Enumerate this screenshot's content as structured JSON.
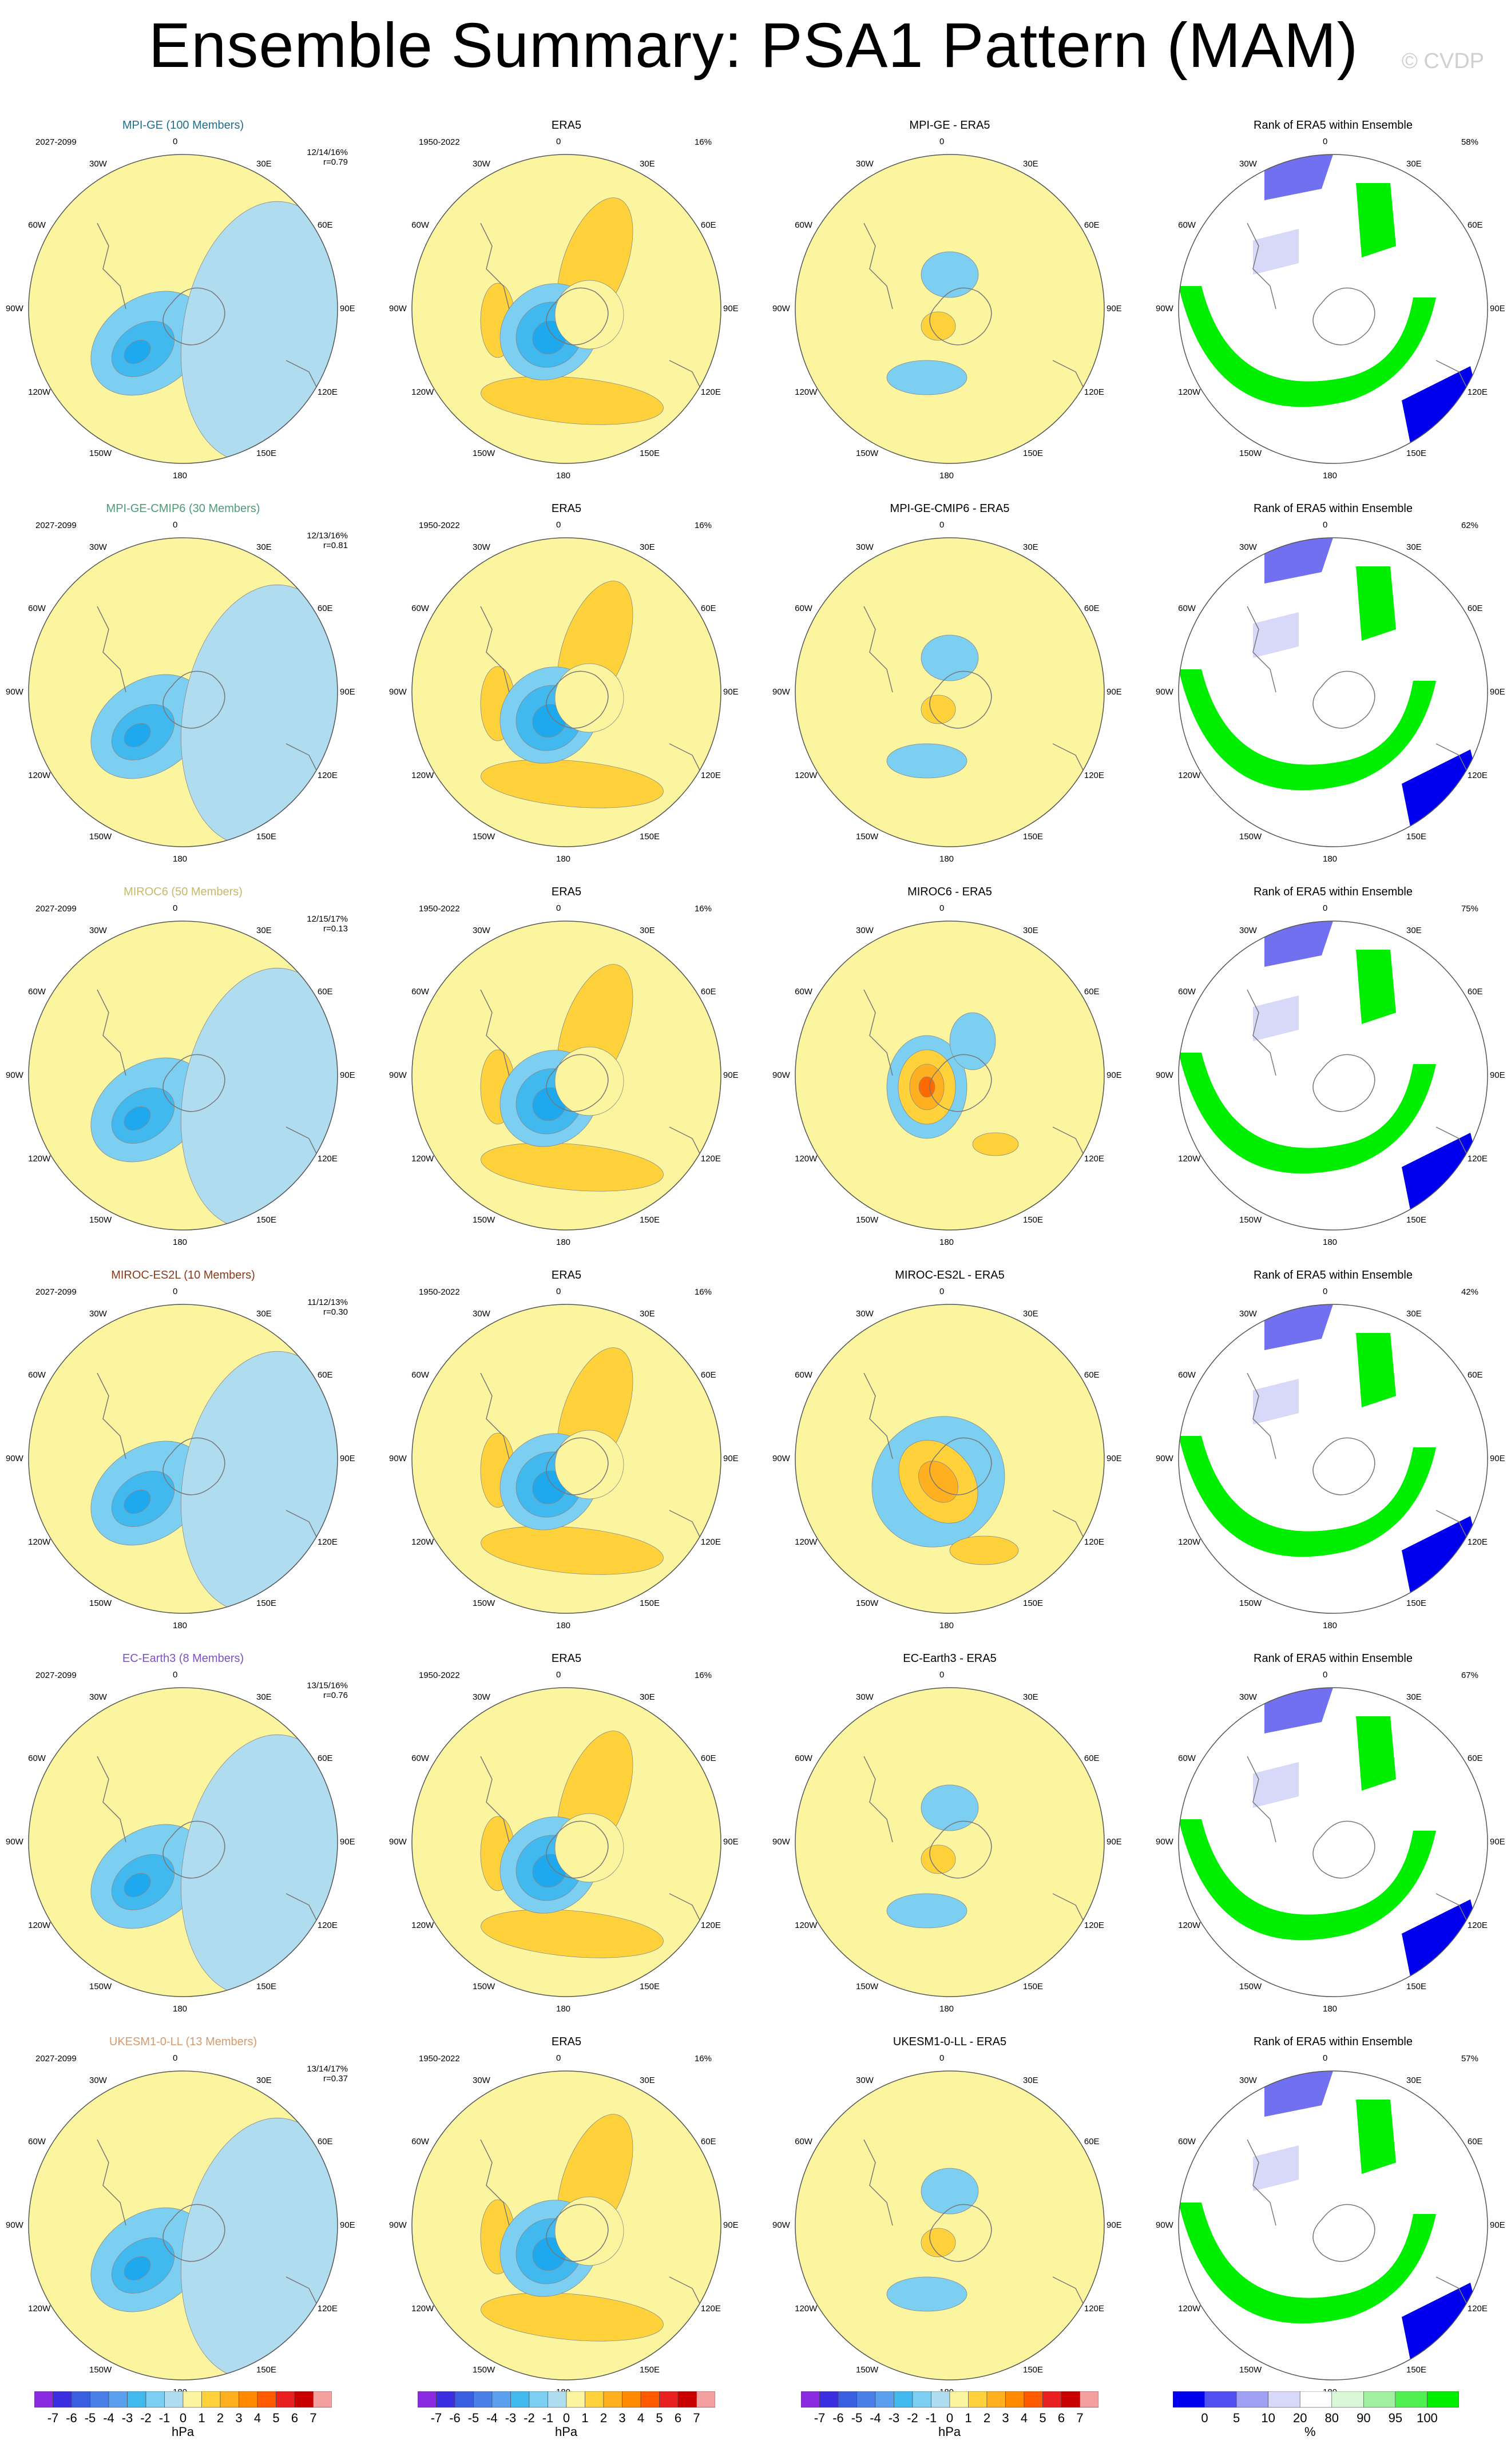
{
  "title": "Ensemble Summary: PSA1 Pattern (MAM)",
  "watermark": "© CVDP",
  "lon_labels": [
    "0",
    "30E",
    "60E",
    "90E",
    "120E",
    "150E",
    "180",
    "150W",
    "120W",
    "90W",
    "60W",
    "30W"
  ],
  "rows": [
    {
      "model": "MPI-GE (100 Members)",
      "model_color": "#1f6f8b",
      "period": "2027-2099",
      "stats": "12/14/16%",
      "r": "r=0.79",
      "diff_title": "MPI-GE - ERA5",
      "rank_pct": "58%"
    },
    {
      "model": "MPI-GE-CMIP6 (30 Members)",
      "model_color": "#4f9a7a",
      "period": "2027-2099",
      "stats": "12/13/16%",
      "r": "r=0.81",
      "diff_title": "MPI-GE-CMIP6 - ERA5",
      "rank_pct": "62%"
    },
    {
      "model": "MIROC6 (50 Members)",
      "model_color": "#c8b86a",
      "period": "2027-2099",
      "stats": "12/15/17%",
      "r": "r=0.13",
      "diff_title": "MIROC6 - ERA5",
      "rank_pct": "75%"
    },
    {
      "model": "MIROC-ES2L (10 Members)",
      "model_color": "#8b3a1a",
      "period": "2027-2099",
      "stats": "11/12/13%",
      "r": "r=0.30",
      "diff_title": "MIROC-ES2L - ERA5",
      "rank_pct": "42%"
    },
    {
      "model": "EC-Earth3 (8 Members)",
      "model_color": "#7a4fc8",
      "period": "2027-2099",
      "stats": "13/15/16%",
      "r": "r=0.76",
      "diff_title": "EC-Earth3 - ERA5",
      "rank_pct": "67%"
    },
    {
      "model": "UKESM1-0-LL (13 Members)",
      "model_color": "#d89a6a",
      "period": "2027-2099",
      "stats": "13/14/17%",
      "r": "r=0.37",
      "diff_title": "UKESM1-0-LL - ERA5",
      "rank_pct": "57%"
    }
  ],
  "era5": {
    "title": "ERA5",
    "period": "1950-2022",
    "pct": "16%"
  },
  "rank_title": "Rank of ERA5 within Ensemble",
  "colorbar_hpa": {
    "labels": [
      "-7",
      "-6",
      "-5",
      "-4",
      "-3",
      "-2",
      "-1",
      "0",
      "1",
      "2",
      "3",
      "4",
      "5",
      "6",
      "7"
    ],
    "colors": [
      "#8a2be2",
      "#3a2ee0",
      "#3a5ee0",
      "#4a7fe8",
      "#5aa0ee",
      "#41b8ee",
      "#7ccff0",
      "#b0dcf0",
      "#fbf5a0",
      "#ffd23c",
      "#ffb020",
      "#ff8a00",
      "#ff5a00",
      "#e82020",
      "#c80000",
      "#f4a0a0"
    ],
    "unit": "hPa"
  },
  "colorbar_pct": {
    "labels": [
      "0",
      "5",
      "10",
      "20",
      "80",
      "90",
      "95",
      "100"
    ],
    "colors": [
      "#0000ee",
      "#5050f0",
      "#a0a0f4",
      "#d8d8f8",
      "#ffffff",
      "#d8f8d8",
      "#a0f0a0",
      "#50f050",
      "#00ee00"
    ],
    "unit": "%"
  },
  "colors": {
    "pos1": "#fbf5a0",
    "neg1": "#b0dcf0",
    "neg2": "#7ccff0",
    "neg3": "#41b8ee",
    "neg4": "#1ea8ee",
    "pos2": "#ffd23c",
    "pos3": "#ffb020",
    "pos4": "#ff6a00",
    "rank_hi": "#00ee00",
    "rank_lo": "#0000ee"
  }
}
